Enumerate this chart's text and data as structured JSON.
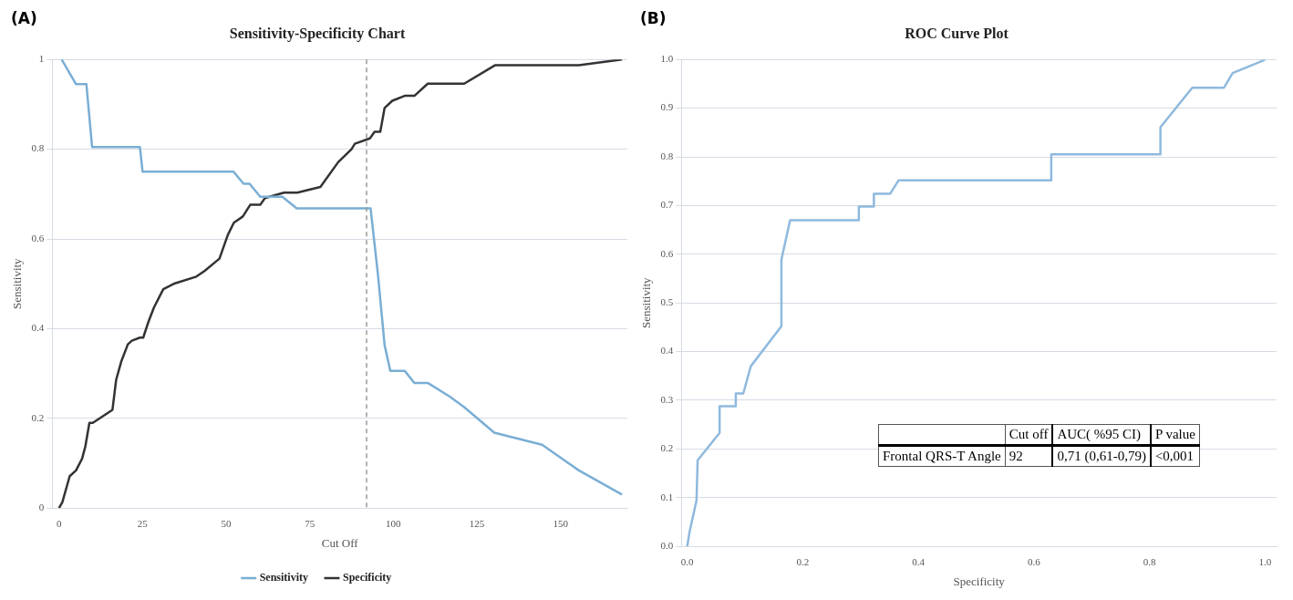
{
  "chart_data": [
    {
      "type": "line",
      "title": "Sensitivity-Specificity Chart",
      "xlabel": "Cut Off",
      "ylabel": "Sensitivity",
      "xlim": [
        -2,
        170
      ],
      "xticks": [
        0,
        25,
        50,
        75,
        100,
        125,
        150
      ],
      "ylim": [
        0,
        1
      ],
      "yticks": [
        0,
        0.2,
        0.4,
        0.6,
        0.8,
        1
      ],
      "grid": "y",
      "legend": "bottom",
      "annotations": [
        "(A)"
      ],
      "ref_lines": [
        {
          "axis": "x",
          "value": 92,
          "color": "#999999",
          "line_style": "dashed"
        }
      ],
      "series": [
        {
          "name": "Sensitivity",
          "color": "#7aaed4",
          "x": [
            0.8,
            5.1,
            8.2,
            9.9,
            24.2,
            25.0,
            52.2,
            55.2,
            57.0,
            60.2,
            66.8,
            71.1,
            93.2,
            95.4,
            97.4,
            99.1,
            103.4,
            106.3,
            110.3,
            116.8,
            121.2,
            130.2,
            144.5,
            155.5,
            168.4
          ],
          "values": [
            1.0,
            0.945,
            0.945,
            0.805,
            0.805,
            0.75,
            0.75,
            0.723,
            0.723,
            0.694,
            0.694,
            0.668,
            0.668,
            0.521,
            0.363,
            0.306,
            0.306,
            0.279,
            0.279,
            0.249,
            0.225,
            0.168,
            0.141,
            0.084,
            0.03
          ]
        },
        {
          "name": "Specificity",
          "color": "#333333",
          "x": [
            0,
            1.0,
            3.2,
            5.1,
            6.9,
            7.9,
            9.1,
            10.1,
            16.0,
            17.1,
            18.6,
            20.6,
            21.8,
            24.2,
            25.2,
            26.7,
            28.4,
            31.2,
            34.7,
            41.1,
            43.6,
            48.0,
            50.5,
            52.3,
            55.0,
            57.2,
            60.2,
            61.6,
            67.3,
            71.3,
            78.2,
            83.5,
            87.5,
            88.5,
            93.0,
            94.4,
            96.1,
            97.4,
            99.7,
            103.4,
            106.3,
            110.3,
            121.2,
            130.4,
            155.5,
            168.4
          ],
          "values": [
            0,
            0.013,
            0.071,
            0.084,
            0.11,
            0.138,
            0.19,
            0.19,
            0.219,
            0.286,
            0.326,
            0.365,
            0.373,
            0.38,
            0.38,
            0.414,
            0.447,
            0.488,
            0.501,
            0.516,
            0.529,
            0.556,
            0.609,
            0.636,
            0.65,
            0.676,
            0.676,
            0.691,
            0.703,
            0.703,
            0.716,
            0.771,
            0.8,
            0.812,
            0.824,
            0.839,
            0.839,
            0.892,
            0.908,
            0.919,
            0.919,
            0.946,
            0.946,
            0.987,
            0.987,
            1.0
          ]
        }
      ]
    },
    {
      "type": "line",
      "title": "ROC Curve Plot",
      "xlabel": "Specificity",
      "ylabel": "Sensitivity",
      "xlim": [
        -0.01,
        1.02
      ],
      "xticks": [
        {
          "value": 0,
          "label": "0.0"
        },
        {
          "value": 0.2,
          "label": "0.2"
        },
        {
          "value": 0.4,
          "label": "0.4"
        },
        {
          "value": 0.6,
          "label": "0.6"
        },
        {
          "value": 0.8,
          "label": "0.8"
        },
        {
          "value": 1,
          "label": "1.0"
        }
      ],
      "ylim": [
        0,
        1
      ],
      "yticks": [
        {
          "value": 0,
          "label": "0.0"
        },
        {
          "value": 0.1,
          "label": "0.1"
        },
        {
          "value": 0.2,
          "label": "0.2"
        },
        {
          "value": 0.3,
          "label": "0.3"
        },
        {
          "value": 0.4,
          "label": "0.4"
        },
        {
          "value": 0.5,
          "label": "0.5"
        },
        {
          "value": 0.6,
          "label": "0.6"
        },
        {
          "value": 0.7,
          "label": "0.7"
        },
        {
          "value": 0.8,
          "label": "0.8"
        },
        {
          "value": 0.9,
          "label": "0.9"
        },
        {
          "value": 1,
          "label": "1.0"
        }
      ],
      "grid": "y",
      "legend": false,
      "annotations": [
        "(B)",
        "Cut off",
        "AUC( %95 CI)",
        "P value",
        "Frontal QRS-T Angle",
        "92",
        "0,71 (0,61-0,79)",
        "<0,001"
      ],
      "series": [
        {
          "color": "#8fb9de",
          "x": [
            0,
            0.004,
            0.016,
            0.018,
            0.056,
            0.056,
            0.084,
            0.084,
            0.097,
            0.11,
            0.163,
            0.163,
            0.178,
            0.297,
            0.297,
            0.323,
            0.323,
            0.351,
            0.366,
            0.63,
            0.63,
            0.819,
            0.819,
            0.874,
            0.929,
            0.944,
            0.995,
            1.0
          ],
          "values": [
            0,
            0.03,
            0.094,
            0.177,
            0.233,
            0.288,
            0.288,
            0.314,
            0.314,
            0.37,
            0.452,
            0.589,
            0.67,
            0.67,
            0.698,
            0.698,
            0.724,
            0.724,
            0.752,
            0.752,
            0.805,
            0.805,
            0.861,
            0.942,
            0.942,
            0.972,
            0.997,
            1.0
          ]
        }
      ]
    }
  ]
}
